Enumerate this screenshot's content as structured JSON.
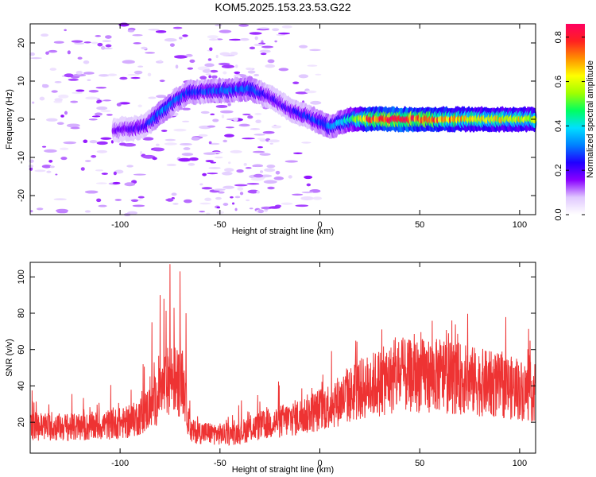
{
  "title": "KOM5.2025.153.23.53.G22",
  "chart_data": [
    {
      "type": "heatmap",
      "xlabel": "Height of straight line (km)",
      "ylabel": "Frequency (Hz)",
      "xlim": [
        -145,
        108
      ],
      "ylim": [
        -25,
        25
      ],
      "xticks": [
        -100,
        -50,
        0,
        50,
        100
      ],
      "yticks": [
        -20,
        -10,
        0,
        10,
        20
      ],
      "colorbar": {
        "label": "Normalized spectral amplitude",
        "range": [
          0,
          0.86
        ],
        "ticks": [
          0.0,
          0.2,
          0.4,
          0.6,
          0.8
        ],
        "colormap": [
          "#ffffff",
          "#e0c8ff",
          "#8a00ff",
          "#2000ff",
          "#0080ff",
          "#00e0ff",
          "#00ff60",
          "#a0ff00",
          "#ffff00",
          "#ff9000",
          "#ff2020",
          "#ff0060"
        ]
      },
      "ridge": [
        {
          "x": -103,
          "y": -3,
          "a": 0.15
        },
        {
          "x": -95,
          "y": -2.5,
          "a": 0.2
        },
        {
          "x": -88,
          "y": -2,
          "a": 0.2
        },
        {
          "x": -80,
          "y": 1.5,
          "a": 0.3
        },
        {
          "x": -72,
          "y": 5,
          "a": 0.3
        },
        {
          "x": -66,
          "y": 7,
          "a": 0.25
        },
        {
          "x": -35,
          "y": 8,
          "a": 0.3
        },
        {
          "x": -25,
          "y": 6,
          "a": 0.2
        },
        {
          "x": -15,
          "y": 2.5,
          "a": 0.2
        },
        {
          "x": -5,
          "y": 0.5,
          "a": 0.25
        },
        {
          "x": 5,
          "y": -2,
          "a": 0.3
        },
        {
          "x": 15,
          "y": 0,
          "a": 0.4
        },
        {
          "x": 25,
          "y": 0,
          "a": 0.75
        },
        {
          "x": 40,
          "y": 0,
          "a": 0.8
        },
        {
          "x": 60,
          "y": 0,
          "a": 0.7
        },
        {
          "x": 80,
          "y": 0,
          "a": 0.6
        },
        {
          "x": 100,
          "y": 0,
          "a": 0.6
        },
        {
          "x": 108,
          "y": 0,
          "a": 0.55
        }
      ]
    },
    {
      "type": "line",
      "xlabel": "Height of straight line (km)",
      "ylabel": "SNR (v/v)",
      "xlim": [
        -145,
        108
      ],
      "ylim": [
        3,
        108
      ],
      "xticks": [
        -100,
        -50,
        0,
        50,
        100
      ],
      "yticks": [
        20,
        40,
        60,
        80,
        100
      ],
      "color": "#ee3333",
      "envelope": [
        {
          "x": -145,
          "y": 18
        },
        {
          "x": -120,
          "y": 17
        },
        {
          "x": -95,
          "y": 20
        },
        {
          "x": -88,
          "y": 25
        },
        {
          "x": -80,
          "y": 35
        },
        {
          "x": -75,
          "y": 45
        },
        {
          "x": -68,
          "y": 40
        },
        {
          "x": -65,
          "y": 15
        },
        {
          "x": -45,
          "y": 13
        },
        {
          "x": -30,
          "y": 18
        },
        {
          "x": -10,
          "y": 23
        },
        {
          "x": 0,
          "y": 27
        },
        {
          "x": 10,
          "y": 32
        },
        {
          "x": 20,
          "y": 38
        },
        {
          "x": 30,
          "y": 42
        },
        {
          "x": 40,
          "y": 45
        },
        {
          "x": 55,
          "y": 46
        },
        {
          "x": 70,
          "y": 44
        },
        {
          "x": 85,
          "y": 41
        },
        {
          "x": 100,
          "y": 38
        },
        {
          "x": 108,
          "y": 36
        }
      ],
      "peaks": [
        {
          "x": -84,
          "y": 75
        },
        {
          "x": -80,
          "y": 90
        },
        {
          "x": -78,
          "y": 88
        },
        {
          "x": -75,
          "y": 107
        },
        {
          "x": -73,
          "y": 83
        },
        {
          "x": -70,
          "y": 103
        },
        {
          "x": -67,
          "y": 80
        }
      ]
    }
  ]
}
